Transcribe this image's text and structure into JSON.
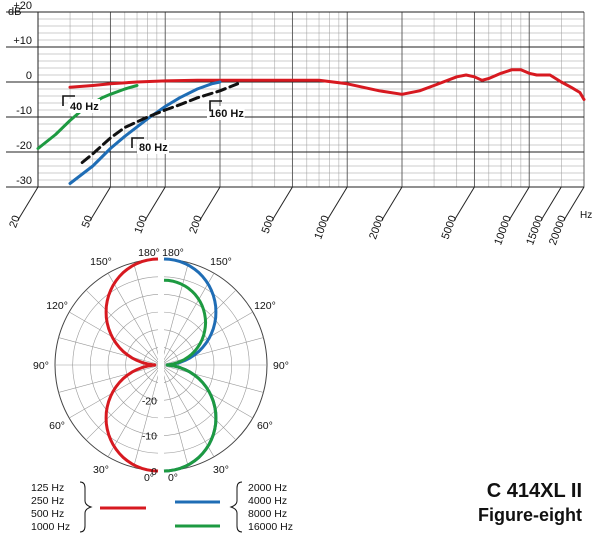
{
  "chart_data": [
    {
      "type": "line",
      "title": "",
      "ylabel": "dB",
      "xlabel": "Hz",
      "y_ticks": [
        "+20",
        "+10",
        "0",
        "-10",
        "-20",
        "-30"
      ],
      "x_ticks": [
        "20",
        "50",
        "100",
        "200",
        "500",
        "1000",
        "2000",
        "5000",
        "10000",
        "15000",
        "20000"
      ],
      "ylim": [
        -30,
        20
      ],
      "xlim": [
        20,
        20000
      ],
      "x_scale": "log",
      "grid": true,
      "callouts": [
        "40 Hz",
        "80 Hz",
        "160 Hz"
      ],
      "series": [
        {
          "color": "#d71920",
          "style": "solid",
          "points": [
            [
              30,
              -1.5
            ],
            [
              40,
              -1
            ],
            [
              50,
              -0.5
            ],
            [
              70,
              0
            ],
            [
              100,
              0.3
            ],
            [
              150,
              0.5
            ],
            [
              200,
              0.5
            ],
            [
              300,
              0.5
            ],
            [
              500,
              0.5
            ],
            [
              700,
              0.5
            ],
            [
              1000,
              -0.5
            ],
            [
              1500,
              -2.5
            ],
            [
              2000,
              -3.5
            ],
            [
              2500,
              -2.5
            ],
            [
              3000,
              -1
            ],
            [
              4000,
              1.5
            ],
            [
              4500,
              2
            ],
            [
              5000,
              1.5
            ],
            [
              5500,
              0.5
            ],
            [
              6000,
              1
            ],
            [
              7000,
              2.5
            ],
            [
              8000,
              3.5
            ],
            [
              9000,
              3.5
            ],
            [
              10000,
              2.5
            ],
            [
              11000,
              2
            ],
            [
              13000,
              2
            ],
            [
              15000,
              0
            ],
            [
              17000,
              -1.5
            ],
            [
              19000,
              -3
            ],
            [
              20000,
              -5
            ]
          ]
        },
        {
          "color": "#1d9a41",
          "style": "solid",
          "points": [
            [
              20,
              -19
            ],
            [
              25,
              -15
            ],
            [
              30,
              -11
            ],
            [
              35,
              -8
            ],
            [
              40,
              -6
            ],
            [
              45,
              -4.5
            ],
            [
              50,
              -3.5
            ],
            [
              60,
              -2
            ],
            [
              70,
              -1
            ]
          ]
        },
        {
          "color": "#1f6db5",
          "style": "solid",
          "points": [
            [
              30,
              -29
            ],
            [
              40,
              -24
            ],
            [
              50,
              -19
            ],
            [
              60,
              -15.5
            ],
            [
              80,
              -10.5
            ],
            [
              100,
              -7
            ],
            [
              120,
              -4.5
            ],
            [
              150,
              -2
            ],
            [
              180,
              -0.5
            ],
            [
              200,
              0
            ]
          ]
        },
        {
          "color": "#111111",
          "style": "dashed",
          "points": [
            [
              35,
              -23
            ],
            [
              40,
              -20.5
            ],
            [
              50,
              -16
            ],
            [
              60,
              -13
            ],
            [
              80,
              -10
            ],
            [
              100,
              -8
            ],
            [
              120,
              -6.5
            ],
            [
              150,
              -4.5
            ],
            [
              200,
              -2.5
            ],
            [
              250,
              -0.5
            ]
          ]
        }
      ]
    },
    {
      "type": "polar",
      "angle_labels": [
        "180°",
        "150°",
        "120°",
        "90°",
        "60°",
        "30°",
        "0°"
      ],
      "radial_labels": [
        "-20",
        "-10",
        "0"
      ],
      "rlim": [
        -30,
        0
      ],
      "series": [
        {
          "color": "#d71920",
          "side": "left",
          "shape": "figure-eight",
          "rear_lobe": 1.0
        },
        {
          "color": "#1f6db5",
          "side": "right",
          "shape": "figure-eight",
          "rear_lobe": 1.0
        },
        {
          "color": "#1d9a41",
          "side": "right",
          "shape": "figure-eight",
          "rear_lobe": 0.8
        }
      ]
    }
  ],
  "legend": {
    "left_freqs": [
      "125 Hz",
      "250 Hz",
      "500 Hz",
      "1000 Hz"
    ],
    "right_freqs": [
      "2000 Hz",
      "4000 Hz",
      "8000 Hz",
      "16000 Hz"
    ],
    "line_colors": [
      "#d71920",
      "#1f6db5",
      "#1d9a41"
    ]
  },
  "model": {
    "name": "C 414XL II",
    "pattern": "Figure-eight"
  }
}
